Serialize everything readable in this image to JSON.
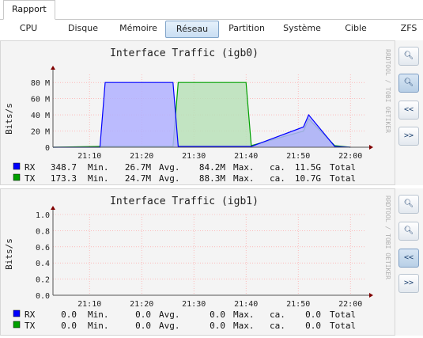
{
  "top_tab": "Rapport",
  "nav": [
    {
      "label": "CPU",
      "active": false
    },
    {
      "label": "Disque",
      "active": false
    },
    {
      "label": "Mémoire",
      "active": false
    },
    {
      "label": "Réseau",
      "active": true
    },
    {
      "label": "Partition",
      "active": false
    },
    {
      "label": "Système",
      "active": false
    },
    {
      "label": "Cible",
      "active": false
    },
    {
      "label": "ZFS",
      "active": false
    }
  ],
  "side_buttons": {
    "zoom_in": "+",
    "zoom_out": "−",
    "prev": "<<",
    "next": ">>"
  },
  "watermark": "RRDTOOL / TOBI OETIKER",
  "colors": {
    "rx": "#0000ff",
    "tx": "#00a000",
    "rx_fill": "#b0b0ff",
    "tx_fill": "#b8e0b8",
    "grid": "#ff9999",
    "axis": "#800000"
  },
  "graphs": [
    {
      "title": "Interface Traffic (igb0)",
      "ylabel": "Bits/s",
      "yticks": [
        "0",
        "20 M",
        "40 M",
        "60 M",
        "80 M"
      ],
      "xticks": [
        "21:10",
        "21:20",
        "21:30",
        "21:40",
        "21:50",
        "22:00"
      ],
      "legend": [
        {
          "name": "RX",
          "cur": "348.7",
          "min_label": "Min.",
          "min": "26.7M",
          "avg_label": "Avg.",
          "avg": "84.2M",
          "max_label": "Max.",
          "max": "ca.",
          "total": "11.5G",
          "total_label": "Total"
        },
        {
          "name": "TX",
          "cur": "173.3",
          "min_label": "Min.",
          "min": "24.7M",
          "avg_label": "Avg.",
          "avg": "88.3M",
          "max_label": "Max.",
          "max": "ca.",
          "total": "10.7G",
          "total_label": "Total"
        }
      ]
    },
    {
      "title": "Interface Traffic (igb1)",
      "ylabel": "Bits/s",
      "yticks": [
        "0.0",
        "0.2",
        "0.4",
        "0.6",
        "0.8",
        "1.0"
      ],
      "xticks": [
        "21:10",
        "21:20",
        "21:30",
        "21:40",
        "21:50",
        "22:00"
      ],
      "legend": [
        {
          "name": "RX",
          "cur": "0.0",
          "min_label": "Min.",
          "min": "0.0",
          "avg_label": "Avg.",
          "avg": "0.0",
          "max_label": "Max.",
          "max": "ca.",
          "total": "0.0",
          "total_label": "Total"
        },
        {
          "name": "TX",
          "cur": "0.0",
          "min_label": "Min.",
          "min": "0.0",
          "avg_label": "Avg.",
          "avg": "0.0",
          "max_label": "Max.",
          "max": "ca.",
          "total": "0.0",
          "total_label": "Total"
        }
      ]
    }
  ],
  "chart_data": [
    {
      "type": "area",
      "title": "Interface Traffic (igb0)",
      "xlabel": "",
      "ylabel": "Bits/s",
      "ylim": [
        0,
        90
      ],
      "y_unit": "M",
      "x": [
        "21:03",
        "21:12",
        "21:13",
        "21:26",
        "21:27",
        "21:40",
        "21:41",
        "21:51",
        "21:52",
        "21:57",
        "22:00"
      ],
      "series": [
        {
          "name": "RX",
          "values": [
            0,
            0,
            80,
            80,
            1,
            1,
            1,
            25,
            40,
            1,
            0
          ]
        },
        {
          "name": "TX",
          "values": [
            0,
            1,
            1,
            1,
            80,
            80,
            2,
            20,
            35,
            2,
            0
          ]
        }
      ]
    },
    {
      "type": "line",
      "title": "Interface Traffic (igb1)",
      "xlabel": "",
      "ylabel": "Bits/s",
      "ylim": [
        0,
        1
      ],
      "series": [
        {
          "name": "RX",
          "values": [
            0,
            0
          ]
        },
        {
          "name": "TX",
          "values": [
            0,
            0
          ]
        }
      ]
    }
  ]
}
